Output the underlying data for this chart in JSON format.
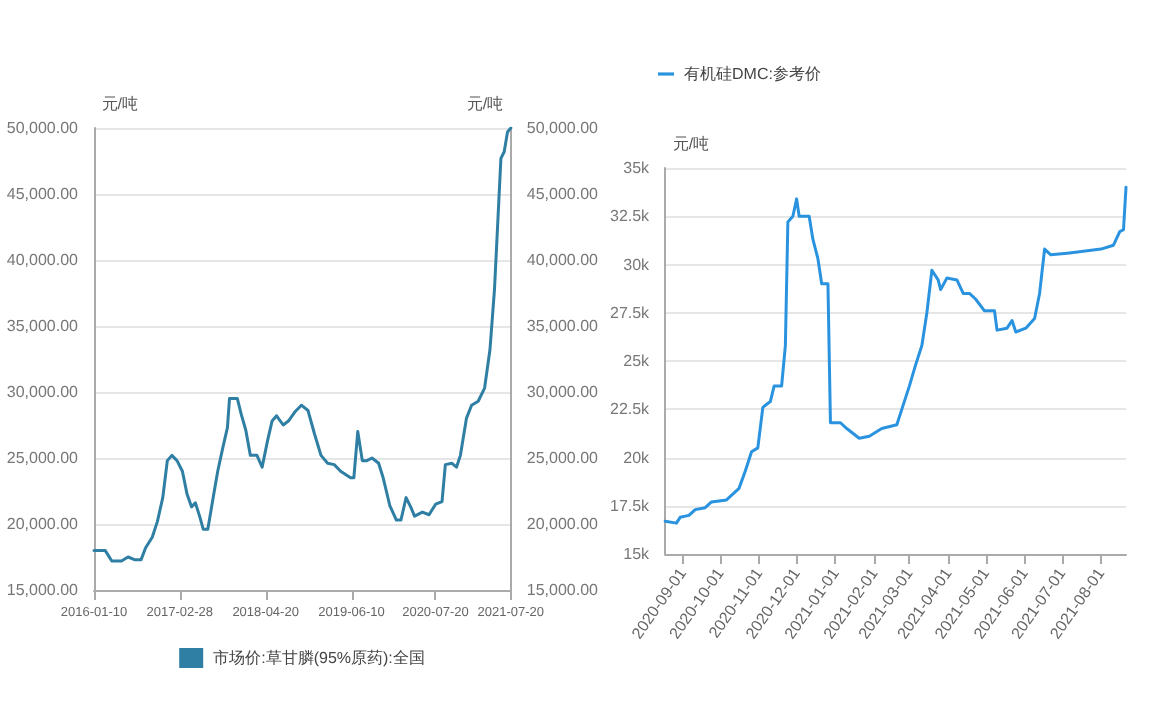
{
  "chart_data": [
    {
      "type": "line",
      "ylabel": "元/吨",
      "y2label": "元/吨",
      "legend": "bottom",
      "grid": "y",
      "marker": "none",
      "series": [
        {
          "name": "市场价:草甘膦(95%原药):全国",
          "color": "#2f7ea3",
          "x": [
            "2016-01-10",
            "2016-03-04",
            "2016-04-05",
            "2016-05-22",
            "2016-06-23",
            "2016-07-24",
            "2016-08-25",
            "2016-09-16",
            "2016-10-18",
            "2016-11-12",
            "2016-12-08",
            "2016-12-30",
            "2017-01-21",
            "2017-02-15",
            "2017-03-13",
            "2017-04-04",
            "2017-04-26",
            "2017-05-15",
            "2017-06-06",
            "2017-06-22",
            "2017-07-14",
            "2017-08-09",
            "2017-08-31",
            "2017-09-25",
            "2017-10-17",
            "2017-10-27",
            "2017-12-04",
            "2017-12-23",
            "2018-01-14",
            "2018-02-05",
            "2018-03-09",
            "2018-04-03",
            "2018-04-29",
            "2018-05-21",
            "2018-06-12",
            "2018-07-14",
            "2018-08-08",
            "2018-09-09",
            "2018-10-10",
            "2018-11-11",
            "2018-12-13",
            "2019-01-13",
            "2019-02-14",
            "2019-03-18",
            "2019-04-18",
            "2019-06-05",
            "2019-06-21",
            "2019-07-10",
            "2019-08-01",
            "2019-08-23",
            "2019-09-17",
            "2019-10-19",
            "2019-11-10",
            "2019-12-12",
            "2020-01-13",
            "2020-02-04",
            "2020-02-29",
            "2020-03-22",
            "2020-04-10",
            "2020-05-18",
            "2020-06-19",
            "2020-07-21",
            "2020-08-21",
            "2020-09-06",
            "2020-10-08",
            "2020-10-30",
            "2020-11-18",
            "2020-12-17",
            "2021-01-11",
            "2021-02-12",
            "2021-03-15",
            "2021-04-10",
            "2021-05-02",
            "2021-05-18",
            "2021-06-02",
            "2021-06-18",
            "2021-07-04",
            "2021-07-20"
          ],
          "values": [
            18000,
            18000,
            17200,
            17200,
            17500,
            17300,
            17300,
            18200,
            19000,
            20200,
            22000,
            24800,
            25200,
            24800,
            24000,
            22300,
            21300,
            21600,
            20500,
            19600,
            19600,
            22000,
            24000,
            25800,
            27300,
            29500,
            29500,
            28300,
            27100,
            25200,
            25200,
            24300,
            26300,
            27800,
            28200,
            27500,
            27800,
            28500,
            29000,
            28600,
            26800,
            25200,
            24600,
            24500,
            24000,
            23500,
            23500,
            27000,
            24800,
            24800,
            25000,
            24600,
            23500,
            21400,
            20300,
            20300,
            22000,
            21300,
            20600,
            20900,
            20700,
            21500,
            21700,
            24500,
            24600,
            24300,
            25200,
            28000,
            29000,
            29300,
            30300,
            33200,
            37800,
            42900,
            47700,
            48200,
            49700,
            50000
          ]
        }
      ],
      "xlim": [
        "2016-01-10",
        "2021-07-20"
      ],
      "xticks": [
        "2016-01-10",
        "2017-02-28",
        "2018-04-20",
        "2019-06-10",
        "2020-07-20",
        "2021-07-20"
      ],
      "ylim": [
        15000,
        50000
      ],
      "yticks": [
        {
          "value": 15000,
          "label": "15,000.00"
        },
        {
          "value": 20000,
          "label": "20,000.00"
        },
        {
          "value": 25000,
          "label": "25,000.00"
        },
        {
          "value": 30000,
          "label": "30,000.00"
        },
        {
          "value": 35000,
          "label": "35,000.00"
        },
        {
          "value": 40000,
          "label": "40,000.00"
        },
        {
          "value": 45000,
          "label": "45,000.00"
        },
        {
          "value": 50000,
          "label": "50,000.00"
        }
      ],
      "y2lim": [
        15000,
        50000
      ],
      "y2ticks": [
        {
          "value": 15000,
          "label": "15,000.00"
        },
        {
          "value": 20000,
          "label": "20,000.00"
        },
        {
          "value": 25000,
          "label": "25,000.00"
        },
        {
          "value": 30000,
          "label": "30,000.00"
        },
        {
          "value": 35000,
          "label": "35,000.00"
        },
        {
          "value": 40000,
          "label": "40,000.00"
        },
        {
          "value": 45000,
          "label": "45,000.00"
        },
        {
          "value": 50000,
          "label": "50,000.00"
        }
      ]
    },
    {
      "type": "line",
      "ylabel": "元/吨",
      "legend": "top left",
      "grid": "y",
      "marker": "none",
      "series": [
        {
          "name": "有机硅DMC:参考价",
          "color": "#2a93e0",
          "x": [
            "2020-08-18",
            "2020-08-27",
            "2020-08-30",
            "2020-09-06",
            "2020-09-11",
            "2020-09-19",
            "2020-09-24",
            "2020-10-06",
            "2020-10-11",
            "2020-10-16",
            "2020-10-21",
            "2020-10-26",
            "2020-10-31",
            "2020-11-04",
            "2020-11-10",
            "2020-11-13",
            "2020-11-19",
            "2020-11-22",
            "2020-11-24",
            "2020-11-28",
            "2020-12-01",
            "2020-12-03",
            "2020-12-11",
            "2020-12-14",
            "2020-12-18",
            "2020-12-21",
            "2020-12-26",
            "2020-12-28",
            "2021-01-05",
            "2021-01-10",
            "2021-01-20",
            "2021-01-28",
            "2021-02-07",
            "2021-02-19",
            "2021-02-24",
            "2021-03-01",
            "2021-03-06",
            "2021-03-11",
            "2021-03-15",
            "2021-03-19",
            "2021-03-24",
            "2021-03-26",
            "2021-03-31",
            "2021-04-08",
            "2021-04-13",
            "2021-04-18",
            "2021-04-23",
            "2021-04-30",
            "2021-05-08",
            "2021-05-10",
            "2021-05-18",
            "2021-05-22",
            "2021-05-25",
            "2021-06-02",
            "2021-06-09",
            "2021-06-13",
            "2021-06-17",
            "2021-06-22",
            "2021-07-07",
            "2021-08-01",
            "2021-08-11",
            "2021-08-16",
            "2021-08-19",
            "2021-08-21"
          ],
          "values": [
            16700,
            16600,
            16900,
            17000,
            17300,
            17400,
            17700,
            17800,
            18100,
            18400,
            19300,
            20300,
            20500,
            22600,
            22900,
            23700,
            23700,
            25800,
            32200,
            32500,
            33400,
            32500,
            32500,
            31300,
            30300,
            29000,
            29000,
            21800,
            21800,
            21500,
            21000,
            21100,
            21500,
            21700,
            22700,
            23700,
            24800,
            25800,
            27500,
            29700,
            29200,
            28700,
            29300,
            29200,
            28500,
            28500,
            28200,
            27600,
            27600,
            26600,
            26700,
            27100,
            26500,
            26700,
            27200,
            28500,
            30800,
            30500,
            30600,
            30800,
            31000,
            31700,
            31800,
            34000
          ]
        }
      ],
      "xlim": [
        "2020-08-18",
        "2021-08-21"
      ],
      "xticks": [
        "2020-09-01",
        "2020-10-01",
        "2020-11-01",
        "2020-12-01",
        "2021-01-01",
        "2021-02-01",
        "2021-03-01",
        "2021-04-01",
        "2021-05-01",
        "2021-06-01",
        "2021-07-01",
        "2021-08-01"
      ],
      "ylim": [
        15000,
        35000
      ],
      "yticks": [
        {
          "value": 15000,
          "label": "15k"
        },
        {
          "value": 17500,
          "label": "17.5k"
        },
        {
          "value": 20000,
          "label": "20k"
        },
        {
          "value": 22500,
          "label": "22.5k"
        },
        {
          "value": 25000,
          "label": "25k"
        },
        {
          "value": 27500,
          "label": "27.5k"
        },
        {
          "value": 30000,
          "label": "30k"
        },
        {
          "value": 32500,
          "label": "32.5k"
        },
        {
          "value": 35000,
          "label": "35k"
        }
      ]
    }
  ]
}
